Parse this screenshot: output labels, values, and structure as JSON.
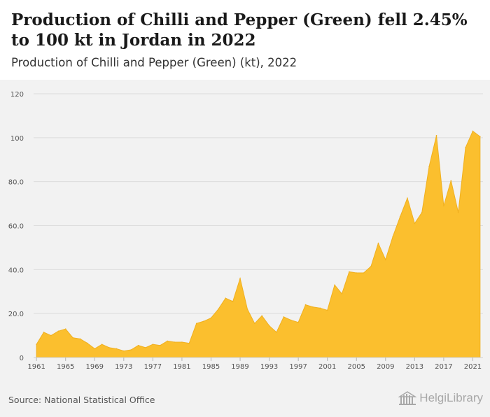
{
  "header": {
    "title": "Production of Chilli and Pepper (Green) fell 2.45% to 100 kt in Jordan in 2022",
    "subtitle": "Production of Chilli and Pepper (Green) (kt), 2022"
  },
  "footer": {
    "source": "Source: National Statistical Office",
    "logo_text": "HelgiLibrary",
    "logo_icon": "helgi-library-building-icon"
  },
  "colors": {
    "area_fill": "#fbbf2e",
    "area_stroke": "#f0b020",
    "grid": "#dcdcdc",
    "chart_background": "#f2f2f2"
  },
  "chart_data": {
    "type": "area",
    "x": [
      1961,
      1962,
      1963,
      1964,
      1965,
      1966,
      1967,
      1968,
      1969,
      1970,
      1971,
      1972,
      1973,
      1974,
      1975,
      1976,
      1977,
      1978,
      1979,
      1980,
      1981,
      1982,
      1983,
      1984,
      1985,
      1986,
      1987,
      1988,
      1989,
      1990,
      1991,
      1992,
      1993,
      1994,
      1995,
      1996,
      1997,
      1998,
      1999,
      2000,
      2001,
      2002,
      2003,
      2004,
      2005,
      2006,
      2007,
      2008,
      2009,
      2010,
      2011,
      2012,
      2013,
      2014,
      2015,
      2016,
      2017,
      2018,
      2019,
      2020,
      2021,
      2022
    ],
    "series": [
      {
        "values": [
          6.0,
          11.5,
          10.0,
          12.0,
          13.0,
          9.0,
          8.5,
          6.5,
          4.0,
          6.0,
          4.5,
          4.0,
          3.0,
          3.5,
          5.5,
          4.5,
          6.0,
          5.5,
          7.5,
          7.0,
          7.0,
          6.5,
          15.5,
          16.5,
          18.0,
          22.0,
          27.0,
          25.5,
          36.0,
          22.0,
          15.5,
          19.0,
          14.5,
          11.5,
          18.5,
          17.0,
          16.0,
          24.0,
          23.0,
          22.5,
          21.5,
          33.0,
          29.0,
          39.0,
          38.5,
          38.5,
          41.5,
          52.0,
          44.5,
          55.0,
          64.0,
          72.5,
          61.0,
          66.0,
          87.0,
          101.0,
          69.0,
          80.5,
          66.0,
          95.5,
          103.0,
          100.5
        ]
      }
    ],
    "y_ticks": [
      "0",
      "20.0",
      "40.0",
      "60.0",
      "80.0",
      "100",
      "120"
    ],
    "x_ticks": [
      "1961",
      "1965",
      "1969",
      "1973",
      "1977",
      "1981",
      "1985",
      "1989",
      "1993",
      "1997",
      "2001",
      "2005",
      "2009",
      "2013",
      "2017",
      "2021"
    ],
    "ylim": [
      0,
      120
    ],
    "xlim": [
      1960.6,
      2022.4
    ],
    "grid": true,
    "legend": "none"
  }
}
